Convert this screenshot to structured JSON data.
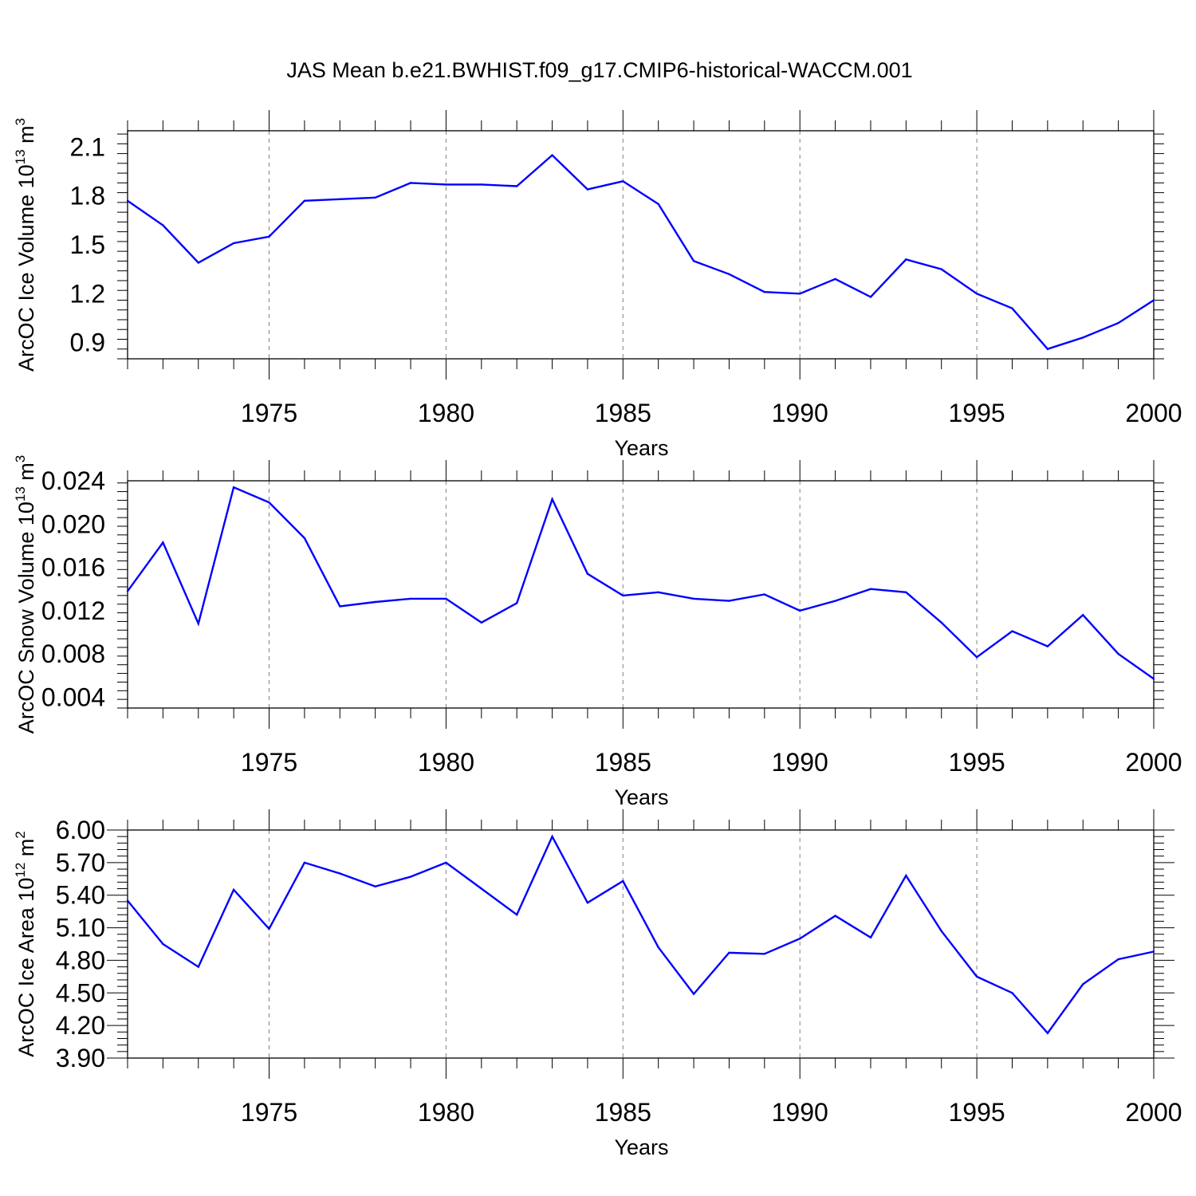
{
  "figure": {
    "title": "JAS Mean b.e21.BWHIST.f09_g17.CMIP6-historical-WACCM.001"
  },
  "colors": {
    "line": "#0000ff",
    "axis": "#000000",
    "grid": "#808080"
  },
  "chart_data": [
    {
      "type": "line",
      "title": "",
      "xlabel": "Years",
      "ylabel": "ArcOC Ice Volume 10",
      "ylabel_exp": "13",
      "ylabel_unit": " m",
      "ylabel_unit_exp": "3",
      "xlim": [
        1971,
        2000
      ],
      "ylim": [
        0.8,
        2.2
      ],
      "yticks": [
        0.9,
        1.2,
        1.5,
        1.8,
        2.1
      ],
      "ytick_labels": [
        "0.9",
        "1.2",
        "1.5",
        "1.8",
        "2.1"
      ],
      "xticks": [
        1975,
        1980,
        1985,
        1990,
        1995,
        2000
      ],
      "xtick_labels": [
        "1975",
        "1980",
        "1985",
        "1990",
        "1995",
        "2000"
      ],
      "grid": "vertical dashed at major x ticks",
      "series": [
        {
          "name": "ArcOC Ice Volume",
          "x": [
            1971,
            1972,
            1973,
            1974,
            1975,
            1976,
            1977,
            1978,
            1979,
            1980,
            1981,
            1982,
            1983,
            1984,
            1985,
            1986,
            1987,
            1988,
            1989,
            1990,
            1991,
            1992,
            1993,
            1994,
            1995,
            1996,
            1997,
            1998,
            1999,
            2000
          ],
          "values": [
            1.77,
            1.62,
            1.39,
            1.51,
            1.55,
            1.77,
            1.78,
            1.79,
            1.88,
            1.87,
            1.87,
            1.86,
            2.05,
            1.84,
            1.89,
            1.75,
            1.4,
            1.32,
            1.21,
            1.2,
            1.29,
            1.18,
            1.41,
            1.35,
            1.2,
            1.11,
            0.86,
            0.93,
            1.02,
            1.16
          ]
        }
      ]
    },
    {
      "type": "line",
      "title": "",
      "xlabel": "Years",
      "ylabel": "ArcOC Snow Volume 10",
      "ylabel_exp": "13",
      "ylabel_unit": " m",
      "ylabel_unit_exp": "3",
      "xlim": [
        1971,
        2000
      ],
      "ylim": [
        0.003,
        0.024
      ],
      "yticks": [
        0.004,
        0.008,
        0.012,
        0.016,
        0.02,
        0.024
      ],
      "ytick_labels": [
        "0.004",
        "0.008",
        "0.012",
        "0.016",
        "0.020",
        "0.024"
      ],
      "xticks": [
        1975,
        1980,
        1985,
        1990,
        1995,
        2000
      ],
      "xtick_labels": [
        "1975",
        "1980",
        "1985",
        "1990",
        "1995",
        "2000"
      ],
      "grid": "vertical dashed at major x ticks",
      "series": [
        {
          "name": "ArcOC Snow Volume",
          "x": [
            1971,
            1972,
            1973,
            1974,
            1975,
            1976,
            1977,
            1978,
            1979,
            1980,
            1981,
            1982,
            1983,
            1984,
            1985,
            1986,
            1987,
            1988,
            1989,
            1990,
            1991,
            1992,
            1993,
            1994,
            1995,
            1996,
            1997,
            1998,
            1999,
            2000
          ],
          "values": [
            0.0138,
            0.0183,
            0.0108,
            0.0234,
            0.022,
            0.0187,
            0.0124,
            0.0128,
            0.0131,
            0.0131,
            0.0109,
            0.0127,
            0.0223,
            0.0154,
            0.0134,
            0.0137,
            0.0131,
            0.0129,
            0.0135,
            0.012,
            0.0129,
            0.014,
            0.0137,
            0.0109,
            0.0077,
            0.0101,
            0.0087,
            0.0116,
            0.008,
            0.0057
          ]
        }
      ]
    },
    {
      "type": "line",
      "title": "",
      "xlabel": "Years",
      "ylabel": "ArcOC Ice Area 10",
      "ylabel_exp": "12",
      "ylabel_unit": " m",
      "ylabel_unit_exp": "2",
      "xlim": [
        1971,
        2000
      ],
      "ylim": [
        3.9,
        6.0
      ],
      "yticks": [
        3.9,
        4.2,
        4.5,
        4.8,
        5.1,
        5.4,
        5.7,
        6.0
      ],
      "ytick_labels": [
        "3.90",
        "4.20",
        "4.50",
        "4.80",
        "5.10",
        "5.40",
        "5.70",
        "6.00"
      ],
      "xticks": [
        1975,
        1980,
        1985,
        1990,
        1995,
        2000
      ],
      "xtick_labels": [
        "1975",
        "1980",
        "1985",
        "1990",
        "1995",
        "2000"
      ],
      "grid": "vertical dashed at major x ticks",
      "series": [
        {
          "name": "ArcOC Ice Area",
          "x": [
            1971,
            1972,
            1973,
            1974,
            1975,
            1976,
            1977,
            1978,
            1979,
            1980,
            1981,
            1982,
            1983,
            1984,
            1985,
            1986,
            1987,
            1988,
            1989,
            1990,
            1991,
            1992,
            1993,
            1994,
            1995,
            1996,
            1997,
            1998,
            1999,
            2000
          ],
          "values": [
            5.35,
            4.95,
            4.74,
            5.45,
            5.09,
            5.7,
            5.6,
            5.48,
            5.57,
            5.7,
            5.46,
            5.22,
            5.94,
            5.33,
            5.53,
            4.92,
            4.49,
            4.87,
            4.86,
            5.0,
            5.21,
            5.01,
            5.58,
            5.07,
            4.65,
            4.5,
            4.13,
            4.58,
            4.81,
            4.88
          ]
        }
      ]
    }
  ]
}
